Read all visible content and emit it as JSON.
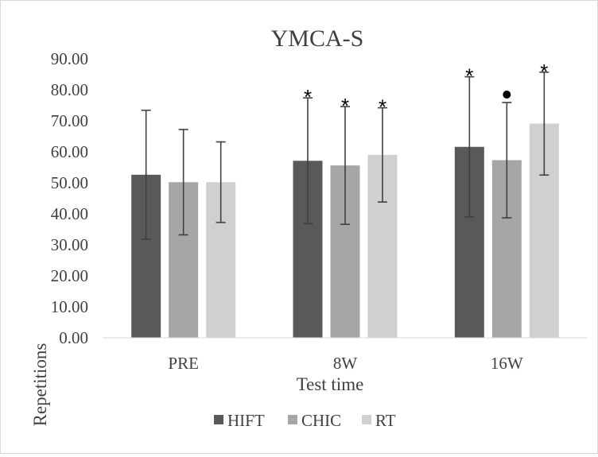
{
  "chart_data": {
    "type": "bar",
    "title": "YMCA-S",
    "xlabel": "Test time",
    "ylabel": "Repetitions",
    "categories": [
      "PRE",
      "8W",
      "16W"
    ],
    "ylim": [
      0,
      90
    ],
    "yticks": [
      "0.00",
      "10.00",
      "20.00",
      "30.00",
      "40.00",
      "50.00",
      "60.00",
      "70.00",
      "80.00",
      "90.00"
    ],
    "grid": false,
    "legend_position": "bottom",
    "series": [
      {
        "name": "HIFT",
        "color": "#595959",
        "values": [
          52.6,
          57.1,
          61.6
        ],
        "error": [
          20.8,
          20.3,
          22.6
        ],
        "markers": [
          "",
          "*",
          "*"
        ]
      },
      {
        "name": "CHIC",
        "color": "#a6a6a6",
        "values": [
          50.2,
          55.6,
          57.3
        ],
        "error": [
          17.0,
          19.0,
          18.6
        ],
        "markers": [
          "",
          "*",
          "●"
        ]
      },
      {
        "name": "RT",
        "color": "#d0d0d0",
        "values": [
          50.2,
          59.0,
          69.1
        ],
        "error": [
          13.0,
          15.2,
          16.6
        ],
        "markers": [
          "",
          "*",
          "*"
        ]
      }
    ]
  }
}
